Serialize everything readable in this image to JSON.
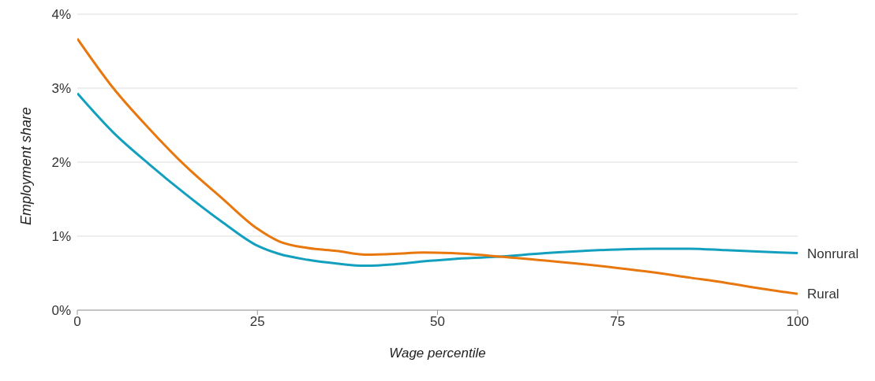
{
  "chart_data": {
    "type": "line",
    "xlabel": "Wage percentile",
    "ylabel": "Employment share",
    "x": [
      0,
      5,
      10,
      15,
      20,
      25,
      28,
      32,
      36,
      40,
      44,
      48,
      52,
      58,
      65,
      75,
      80,
      85,
      90,
      95,
      100
    ],
    "series": [
      {
        "name": "Nonrural",
        "color": "#13a0be",
        "values": [
          2.93,
          2.4,
          1.97,
          1.57,
          1.2,
          0.87,
          0.76,
          0.68,
          0.63,
          0.6,
          0.62,
          0.66,
          0.69,
          0.72,
          0.77,
          0.82,
          0.83,
          0.83,
          0.81,
          0.79,
          0.77
        ]
      },
      {
        "name": "Rural",
        "color": "#e8770e",
        "values": [
          3.67,
          3.0,
          2.45,
          1.95,
          1.52,
          1.1,
          0.93,
          0.84,
          0.8,
          0.75,
          0.76,
          0.78,
          0.77,
          0.73,
          0.67,
          0.57,
          0.51,
          0.44,
          0.37,
          0.29,
          0.22
        ]
      }
    ],
    "xlim": [
      0,
      100
    ],
    "xticks": [
      0,
      25,
      50,
      75,
      100
    ],
    "ylim": [
      0,
      4
    ],
    "yticks": [
      {
        "value": 0,
        "label": "0%"
      },
      {
        "value": 1,
        "label": "1%"
      },
      {
        "value": 2,
        "label": "2%"
      },
      {
        "value": 3,
        "label": "3%"
      },
      {
        "value": 4,
        "label": "4%"
      }
    ],
    "grid": "y",
    "legend": false,
    "marker": "none",
    "line_style": "solid"
  }
}
